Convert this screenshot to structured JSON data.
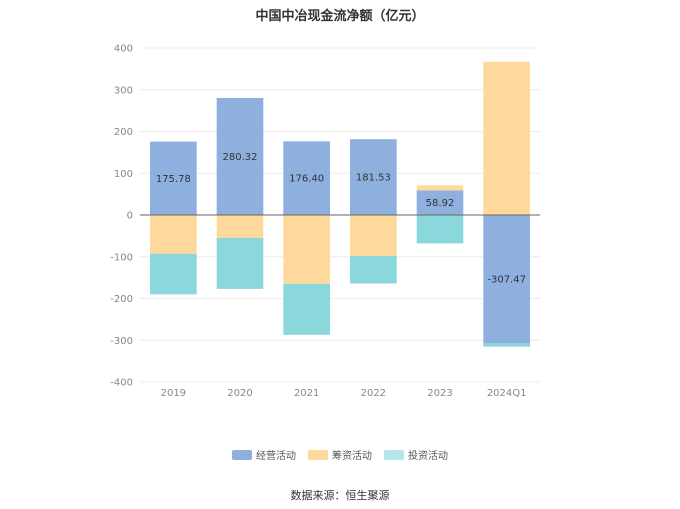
{
  "chart_data": {
    "type": "bar",
    "stacked": true,
    "title": "中国中冶现金流净额（亿元）",
    "categories": [
      "2019",
      "2020",
      "2021",
      "2022",
      "2023",
      "2024Q1"
    ],
    "ylim": [
      -400,
      400
    ],
    "yticks": [
      400,
      300,
      200,
      100,
      0,
      -100,
      -200,
      -300,
      -400
    ],
    "grid": true,
    "legend_position": "bottom",
    "series": [
      {
        "name": "经营活动",
        "color": "#8eb0de",
        "values": [
          175.78,
          280.32,
          176.4,
          181.53,
          58.92,
          -307.47
        ],
        "labels": [
          "175.78",
          "280.32",
          "176.40",
          "181.53",
          "58.92",
          "-307.47"
        ]
      },
      {
        "name": "筹资活动",
        "color": "#ffd99c",
        "values": [
          -93,
          -55,
          -165,
          -98,
          12,
          367
        ]
      },
      {
        "name": "投资活动",
        "color": "#8ad7dc",
        "values": [
          -97,
          -122,
          -122,
          -66,
          -68,
          -8
        ]
      }
    ]
  },
  "source": "数据来源：恒生聚源"
}
